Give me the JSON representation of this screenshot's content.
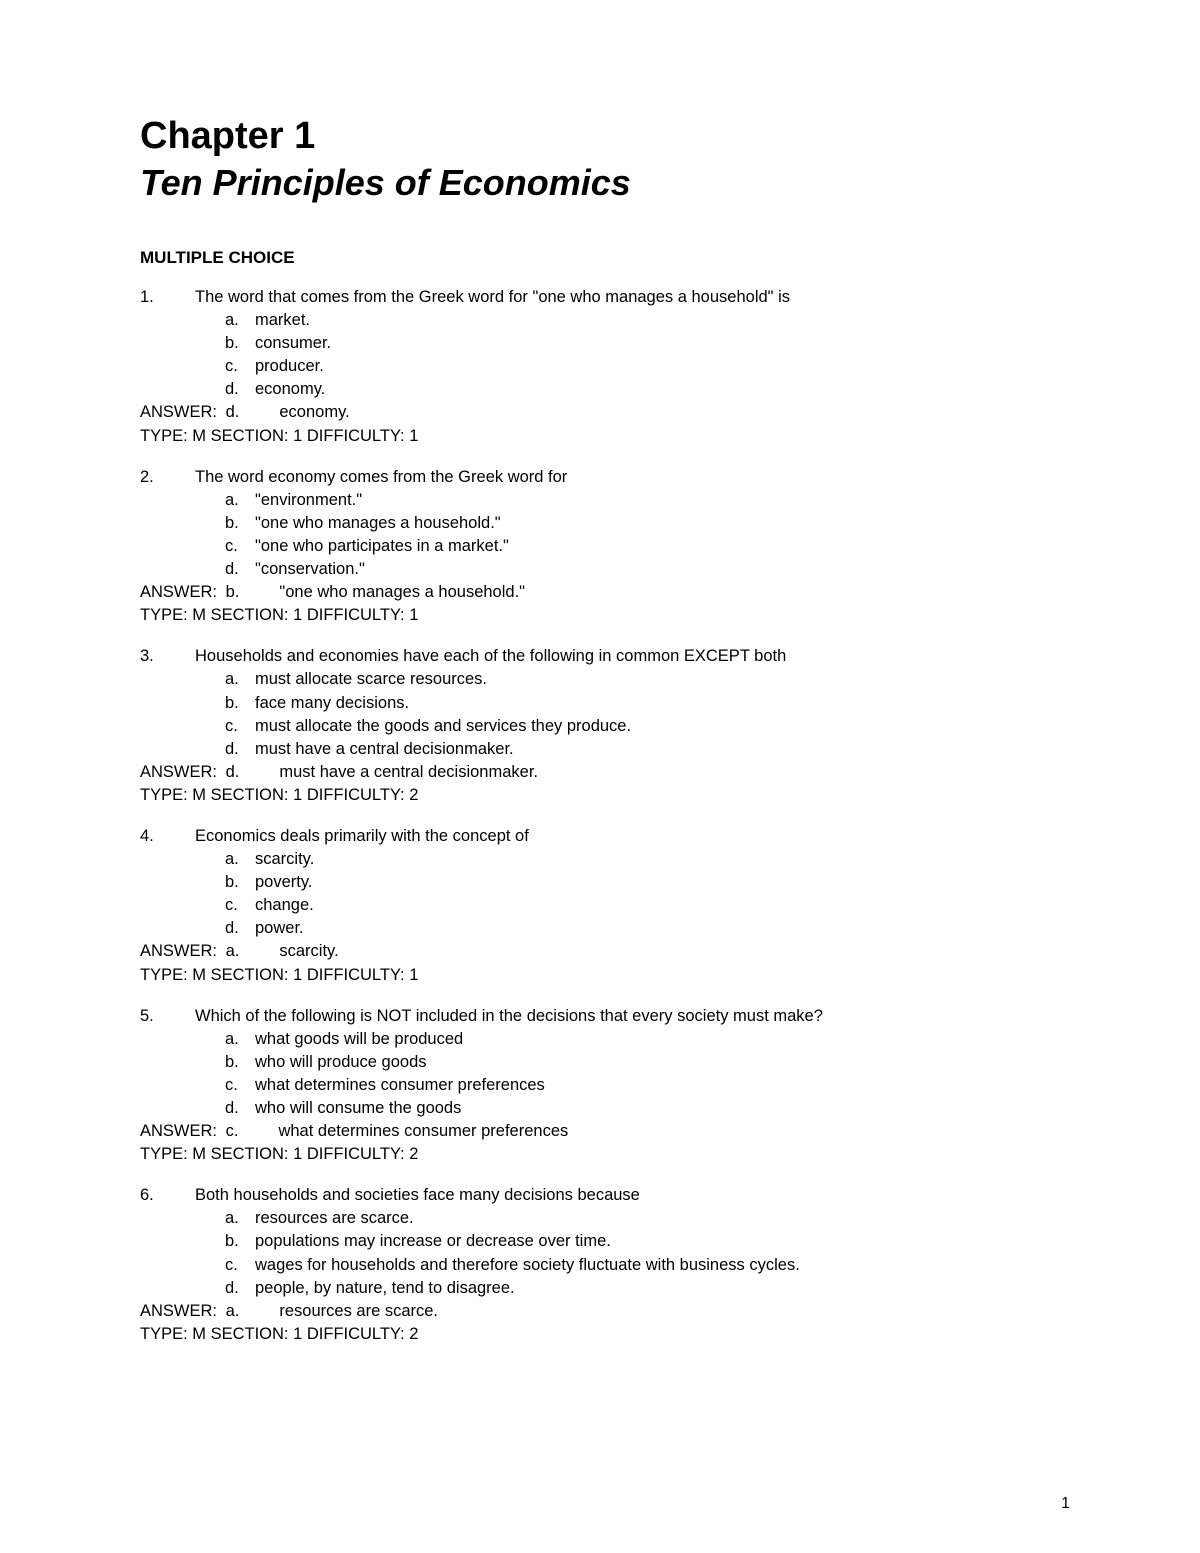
{
  "chapter_title": "Chapter 1",
  "chapter_subtitle": "Ten Principles of Economics",
  "section_heading": "MULTIPLE CHOICE",
  "answer_label": "ANSWER:",
  "questions": [
    {
      "number": "1.",
      "text": "The word that comes from the Greek word for \"one who manages a household\" is",
      "options": [
        {
          "letter": "a.",
          "text": "market."
        },
        {
          "letter": "b.",
          "text": "consumer."
        },
        {
          "letter": "c.",
          "text": "producer."
        },
        {
          "letter": "d.",
          "text": "economy."
        }
      ],
      "answer_letter": "d.",
      "answer_text": "economy.",
      "meta": "TYPE: M SECTION: 1 DIFFICULTY: 1"
    },
    {
      "number": "2.",
      "text": "The word economy comes from the Greek word for",
      "options": [
        {
          "letter": "a.",
          "text": "\"environment.\""
        },
        {
          "letter": "b.",
          "text": "\"one who manages a household.\""
        },
        {
          "letter": "c.",
          "text": "\"one who participates in a market.\""
        },
        {
          "letter": "d.",
          "text": "\"conservation.\""
        }
      ],
      "answer_letter": "b.",
      "answer_text": "\"one who manages a household.\"",
      "meta": "TYPE: M SECTION: 1 DIFFICULTY: 1"
    },
    {
      "number": "3.",
      "text": "Households and economies have each of the following in common EXCEPT both",
      "options": [
        {
          "letter": "a.",
          "text": "must allocate scarce resources."
        },
        {
          "letter": "b.",
          "text": "face many decisions."
        },
        {
          "letter": "c.",
          "text": "must allocate the goods and services they produce."
        },
        {
          "letter": "d.",
          "text": "must have a central decisionmaker."
        }
      ],
      "answer_letter": "d.",
      "answer_text": "must have a central decisionmaker.",
      "meta": "TYPE: M SECTION: 1 DIFFICULTY: 2"
    },
    {
      "number": "4.",
      "text": "Economics deals primarily with the concept of",
      "options": [
        {
          "letter": "a.",
          "text": "scarcity."
        },
        {
          "letter": "b.",
          "text": "poverty."
        },
        {
          "letter": "c.",
          "text": "change."
        },
        {
          "letter": "d.",
          "text": "power."
        }
      ],
      "answer_letter": "a.",
      "answer_text": "scarcity.",
      "meta": "TYPE: M SECTION: 1 DIFFICULTY: 1"
    },
    {
      "number": "5.",
      "text": "Which of the following is NOT included in the decisions that every society must make?",
      "options": [
        {
          "letter": "a.",
          "text": "what goods will be produced"
        },
        {
          "letter": "b.",
          "text": "who will produce goods"
        },
        {
          "letter": "c.",
          "text": "what determines consumer preferences"
        },
        {
          "letter": "d.",
          "text": "who will consume the goods"
        }
      ],
      "answer_letter": "c.",
      "answer_text": "what determines consumer preferences",
      "meta": "TYPE: M SECTION: 1 DIFFICULTY: 2"
    },
    {
      "number": "6.",
      "text": "Both households and societies face many decisions because",
      "options": [
        {
          "letter": "a.",
          "text": "resources are scarce."
        },
        {
          "letter": "b.",
          "text": "populations may increase or decrease over time."
        },
        {
          "letter": "c.",
          "text": "wages for households and therefore society fluctuate with business cycles."
        },
        {
          "letter": "d.",
          "text": "people, by nature, tend to disagree."
        }
      ],
      "answer_letter": "a.",
      "answer_text": "resources are scarce.",
      "meta": "TYPE: M SECTION: 1 DIFFICULTY: 2"
    }
  ],
  "page_number": "1"
}
